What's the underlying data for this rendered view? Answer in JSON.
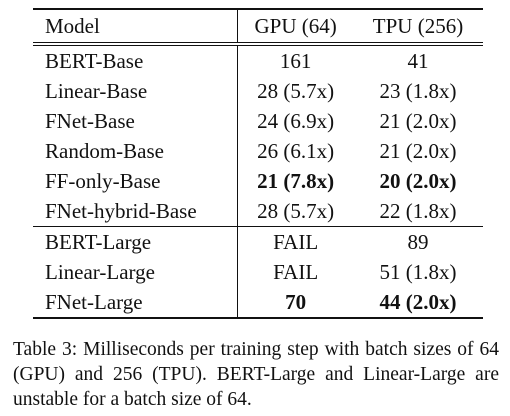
{
  "table": {
    "headers": {
      "model": "Model",
      "gpu": "GPU (64)",
      "tpu": "TPU (256)"
    },
    "groups": [
      {
        "rows": [
          {
            "model": "BERT-Base",
            "gpu": "161",
            "tpu": "41",
            "gpu_bold": false,
            "tpu_bold": false
          },
          {
            "model": "Linear-Base",
            "gpu": "28 (5.7x)",
            "tpu": "23 (1.8x)",
            "gpu_bold": false,
            "tpu_bold": false
          },
          {
            "model": "FNet-Base",
            "gpu": "24 (6.9x)",
            "tpu": "21 (2.0x)",
            "gpu_bold": false,
            "tpu_bold": false
          },
          {
            "model": "Random-Base",
            "gpu": "26 (6.1x)",
            "tpu": "21 (2.0x)",
            "gpu_bold": false,
            "tpu_bold": false
          },
          {
            "model": "FF-only-Base",
            "gpu": "21 (7.8x)",
            "tpu": "20 (2.0x)",
            "gpu_bold": true,
            "tpu_bold": true
          },
          {
            "model": "FNet-hybrid-Base",
            "gpu": "28 (5.7x)",
            "tpu": "22 (1.8x)",
            "gpu_bold": false,
            "tpu_bold": false
          }
        ]
      },
      {
        "rows": [
          {
            "model": "BERT-Large",
            "gpu": "FAIL",
            "tpu": "89",
            "gpu_bold": false,
            "tpu_bold": false
          },
          {
            "model": "Linear-Large",
            "gpu": "FAIL",
            "tpu": "51 (1.8x)",
            "gpu_bold": false,
            "tpu_bold": false
          },
          {
            "model": "FNet-Large",
            "gpu": "70",
            "tpu": "44 (2.0x)",
            "gpu_bold": true,
            "tpu_bold": true
          }
        ]
      }
    ]
  },
  "caption": "Table 3: Milliseconds per training step with batch sizes of 64 (GPU) and 256 (TPU). BERT-Large and Linear-Large are unstable for a batch size of 64."
}
